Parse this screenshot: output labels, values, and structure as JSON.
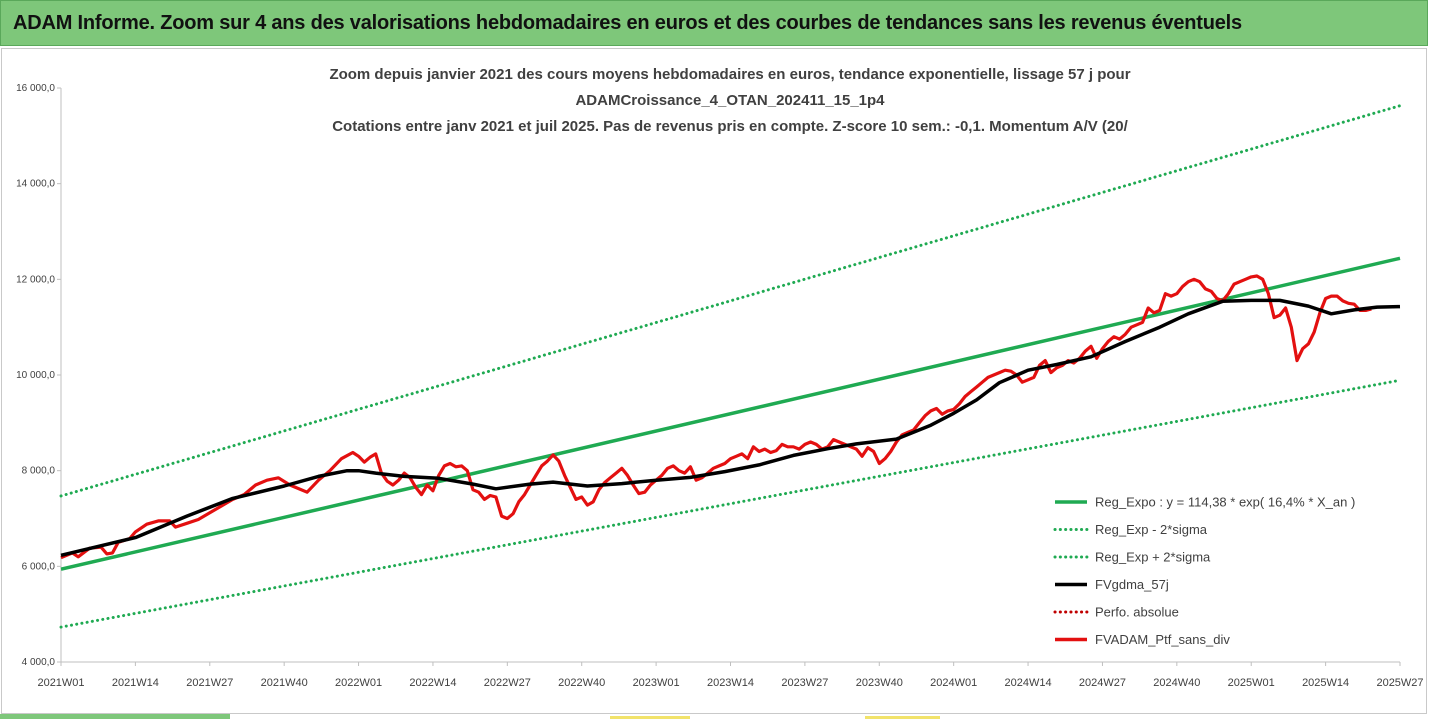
{
  "header": {
    "title": "ADAM Informe. Zoom sur 4 ans des valorisations hebdomadaires en euros et des courbes de tendances sans les revenus éventuels"
  },
  "chart_data": {
    "type": "line",
    "title_lines": [
      "Zoom depuis janvier 2021 des cours moyens hebdomadaires  en euros, tendance exponentielle, lissage 57 j pour",
      "ADAMCroissance_4_OTAN_202411_15_1p4",
      "Cotations entre janv 2021 et juil 2025. Pas de revenus pris en compte. Z-score 10 sem.: -0,1. Momentum A/V (20/"
    ],
    "ylim": [
      4000,
      16000
    ],
    "yticks": [
      "4 000,0",
      "6 000,0",
      "8 000,0",
      "10 000,0",
      "12 000,0",
      "14 000,0",
      "16 000,0"
    ],
    "ytick_values": [
      4000,
      6000,
      8000,
      10000,
      12000,
      14000,
      16000
    ],
    "x_range_weeks": [
      0,
      234
    ],
    "xticks": [
      "2021W01",
      "2021W14",
      "2021W27",
      "2021W40",
      "2022W01",
      "2022W14",
      "2022W27",
      "2022W40",
      "2023W01",
      "2023W14",
      "2023W27",
      "2023W40",
      "2024W01",
      "2024W14",
      "2024W27",
      "2024W40",
      "2025W01",
      "2025W14",
      "2025W27"
    ],
    "grid": false,
    "legend_position": "bottom-right",
    "series": [
      {
        "name": "Reg_Expo : y = 114,38 * exp( 16,4% *  X_an )",
        "style": "solid",
        "color": "#1faa52",
        "points": [
          [
            0,
            5940
          ],
          [
            234,
            12440
          ]
        ]
      },
      {
        "name": "Reg_Exp - 2*sigma",
        "style": "dotted",
        "color": "#1faa52",
        "points": [
          [
            0,
            4730
          ],
          [
            234,
            9890
          ]
        ]
      },
      {
        "name": "Reg_Exp + 2*sigma",
        "style": "dotted",
        "color": "#1faa52",
        "points": [
          [
            0,
            7470
          ],
          [
            234,
            15630
          ]
        ]
      },
      {
        "name": "FVgdma_57j",
        "style": "solid",
        "color": "#000000",
        "points": [
          [
            0,
            6230
          ],
          [
            13,
            6600
          ],
          [
            22,
            7050
          ],
          [
            30,
            7420
          ],
          [
            39,
            7680
          ],
          [
            45,
            7880
          ],
          [
            50,
            8000
          ],
          [
            52,
            8000
          ],
          [
            55,
            7950
          ],
          [
            60,
            7880
          ],
          [
            66,
            7840
          ],
          [
            72,
            7720
          ],
          [
            76,
            7620
          ],
          [
            82,
            7720
          ],
          [
            86,
            7760
          ],
          [
            92,
            7680
          ],
          [
            98,
            7730
          ],
          [
            104,
            7800
          ],
          [
            110,
            7860
          ],
          [
            116,
            7980
          ],
          [
            122,
            8120
          ],
          [
            128,
            8320
          ],
          [
            134,
            8460
          ],
          [
            139,
            8560
          ],
          [
            146,
            8660
          ],
          [
            152,
            8950
          ],
          [
            156,
            9200
          ],
          [
            160,
            9480
          ],
          [
            164,
            9840
          ],
          [
            169,
            10100
          ],
          [
            174,
            10220
          ],
          [
            180,
            10380
          ],
          [
            186,
            10700
          ],
          [
            192,
            11000
          ],
          [
            197,
            11280
          ],
          [
            203,
            11540
          ],
          [
            208,
            11560
          ],
          [
            213,
            11560
          ],
          [
            218,
            11440
          ],
          [
            222,
            11280
          ],
          [
            226,
            11360
          ],
          [
            230,
            11420
          ],
          [
            234,
            11430
          ]
        ]
      },
      {
        "name": "Perfo. absolue",
        "style": "dotted",
        "color": "#c00000",
        "points": []
      },
      {
        "name": "FVADAM_Ptf_sans_div",
        "style": "solid",
        "color": "#e31010",
        "points": [
          [
            0,
            6180
          ],
          [
            2,
            6280
          ],
          [
            3,
            6200
          ],
          [
            5,
            6380
          ],
          [
            7,
            6400
          ],
          [
            8,
            6260
          ],
          [
            9,
            6280
          ],
          [
            10,
            6500
          ],
          [
            12,
            6580
          ],
          [
            13,
            6720
          ],
          [
            15,
            6880
          ],
          [
            17,
            6950
          ],
          [
            19,
            6950
          ],
          [
            20,
            6820
          ],
          [
            22,
            6900
          ],
          [
            24,
            6980
          ],
          [
            26,
            7120
          ],
          [
            28,
            7260
          ],
          [
            30,
            7400
          ],
          [
            32,
            7500
          ],
          [
            34,
            7700
          ],
          [
            36,
            7800
          ],
          [
            38,
            7850
          ],
          [
            40,
            7700
          ],
          [
            41,
            7650
          ],
          [
            43,
            7550
          ],
          [
            45,
            7800
          ],
          [
            47,
            8000
          ],
          [
            49,
            8250
          ],
          [
            51,
            8380
          ],
          [
            52,
            8300
          ],
          [
            53,
            8180
          ],
          [
            54,
            8280
          ],
          [
            55,
            8350
          ],
          [
            56,
            7950
          ],
          [
            57,
            7780
          ],
          [
            58,
            7700
          ],
          [
            59,
            7800
          ],
          [
            60,
            7950
          ],
          [
            61,
            7850
          ],
          [
            62,
            7650
          ],
          [
            63,
            7500
          ],
          [
            64,
            7700
          ],
          [
            65,
            7580
          ],
          [
            66,
            7900
          ],
          [
            67,
            8100
          ],
          [
            68,
            8150
          ],
          [
            69,
            8080
          ],
          [
            70,
            8100
          ],
          [
            71,
            8000
          ],
          [
            72,
            7600
          ],
          [
            73,
            7550
          ],
          [
            74,
            7400
          ],
          [
            75,
            7480
          ],
          [
            76,
            7450
          ],
          [
            77,
            7050
          ],
          [
            78,
            7000
          ],
          [
            79,
            7100
          ],
          [
            80,
            7350
          ],
          [
            81,
            7500
          ],
          [
            82,
            7700
          ],
          [
            83,
            7900
          ],
          [
            84,
            8100
          ],
          [
            85,
            8200
          ],
          [
            86,
            8330
          ],
          [
            87,
            8200
          ],
          [
            88,
            7900
          ],
          [
            89,
            7650
          ],
          [
            90,
            7400
          ],
          [
            91,
            7450
          ],
          [
            92,
            7280
          ],
          [
            93,
            7350
          ],
          [
            94,
            7600
          ],
          [
            95,
            7750
          ],
          [
            96,
            7850
          ],
          [
            97,
            7950
          ],
          [
            98,
            8050
          ],
          [
            99,
            7900
          ],
          [
            100,
            7700
          ],
          [
            101,
            7520
          ],
          [
            102,
            7550
          ],
          [
            103,
            7700
          ],
          [
            104,
            7800
          ],
          [
            105,
            7900
          ],
          [
            106,
            8050
          ],
          [
            107,
            8100
          ],
          [
            108,
            8000
          ],
          [
            109,
            7950
          ],
          [
            110,
            8080
          ],
          [
            111,
            7800
          ],
          [
            112,
            7850
          ],
          [
            113,
            7950
          ],
          [
            114,
            8050
          ],
          [
            115,
            8100
          ],
          [
            116,
            8150
          ],
          [
            117,
            8250
          ],
          [
            118,
            8300
          ],
          [
            119,
            8350
          ],
          [
            120,
            8250
          ],
          [
            121,
            8500
          ],
          [
            122,
            8400
          ],
          [
            123,
            8450
          ],
          [
            124,
            8380
          ],
          [
            125,
            8420
          ],
          [
            126,
            8550
          ],
          [
            127,
            8500
          ],
          [
            128,
            8500
          ],
          [
            129,
            8450
          ],
          [
            130,
            8550
          ],
          [
            131,
            8600
          ],
          [
            132,
            8550
          ],
          [
            133,
            8450
          ],
          [
            134,
            8500
          ],
          [
            135,
            8650
          ],
          [
            136,
            8600
          ],
          [
            137,
            8550
          ],
          [
            138,
            8500
          ],
          [
            139,
            8450
          ],
          [
            140,
            8300
          ],
          [
            141,
            8480
          ],
          [
            142,
            8400
          ],
          [
            143,
            8150
          ],
          [
            144,
            8250
          ],
          [
            145,
            8400
          ],
          [
            146,
            8600
          ],
          [
            147,
            8750
          ],
          [
            148,
            8800
          ],
          [
            149,
            8850
          ],
          [
            150,
            9000
          ],
          [
            151,
            9150
          ],
          [
            152,
            9250
          ],
          [
            153,
            9300
          ],
          [
            154,
            9180
          ],
          [
            155,
            9250
          ],
          [
            156,
            9280
          ],
          [
            157,
            9400
          ],
          [
            158,
            9550
          ],
          [
            159,
            9650
          ],
          [
            160,
            9750
          ],
          [
            161,
            9850
          ],
          [
            162,
            9950
          ],
          [
            163,
            10000
          ],
          [
            164,
            10050
          ],
          [
            165,
            10100
          ],
          [
            166,
            10080
          ],
          [
            167,
            10000
          ],
          [
            168,
            9850
          ],
          [
            169,
            9900
          ],
          [
            170,
            9950
          ],
          [
            171,
            10200
          ],
          [
            172,
            10300
          ],
          [
            173,
            10050
          ],
          [
            174,
            10150
          ],
          [
            175,
            10200
          ],
          [
            176,
            10300
          ],
          [
            177,
            10250
          ],
          [
            178,
            10350
          ],
          [
            179,
            10500
          ],
          [
            180,
            10600
          ],
          [
            181,
            10350
          ],
          [
            182,
            10550
          ],
          [
            183,
            10700
          ],
          [
            184,
            10800
          ],
          [
            185,
            10750
          ],
          [
            186,
            10850
          ],
          [
            187,
            11000
          ],
          [
            188,
            11050
          ],
          [
            189,
            11100
          ],
          [
            190,
            11400
          ],
          [
            191,
            11300
          ],
          [
            192,
            11350
          ],
          [
            193,
            11700
          ],
          [
            194,
            11650
          ],
          [
            195,
            11700
          ],
          [
            196,
            11850
          ],
          [
            197,
            11950
          ],
          [
            198,
            12000
          ],
          [
            199,
            11950
          ],
          [
            200,
            11800
          ],
          [
            201,
            11750
          ],
          [
            202,
            11600
          ],
          [
            203,
            11550
          ],
          [
            204,
            11700
          ],
          [
            205,
            11900
          ],
          [
            206,
            11950
          ],
          [
            207,
            12000
          ],
          [
            208,
            12050
          ],
          [
            209,
            12070
          ],
          [
            210,
            12000
          ],
          [
            211,
            11700
          ],
          [
            212,
            11200
          ],
          [
            213,
            11250
          ],
          [
            214,
            11400
          ],
          [
            215,
            11000
          ],
          [
            216,
            10300
          ],
          [
            217,
            10550
          ],
          [
            218,
            10650
          ],
          [
            219,
            10900
          ],
          [
            220,
            11300
          ],
          [
            221,
            11600
          ],
          [
            222,
            11650
          ],
          [
            223,
            11650
          ],
          [
            224,
            11550
          ],
          [
            225,
            11500
          ],
          [
            226,
            11480
          ],
          [
            227,
            11350
          ],
          [
            228,
            11350
          ],
          [
            229,
            11380
          ]
        ]
      }
    ]
  }
}
